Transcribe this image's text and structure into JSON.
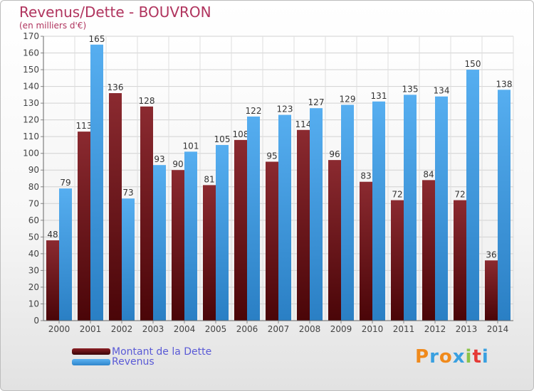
{
  "header": {
    "title": "Revenus/Dette - BOUVRON",
    "subtitle": "(en milliers d'€)"
  },
  "logo": {
    "letters": [
      "P",
      "r",
      "o",
      "x",
      "i",
      "t",
      "i"
    ],
    "colors": [
      "#f08a1c",
      "#3aa0e0",
      "#f08a1c",
      "#3aa0e0",
      "#8bc34a",
      "#e53935",
      "#3aa0e0"
    ]
  },
  "chart_data": {
    "type": "bar",
    "title": "Revenus/Dette - BOUVRON",
    "subtitle": "(en milliers d'€)",
    "categories": [
      "2000",
      "2001",
      "2002",
      "2003",
      "2004",
      "2005",
      "2006",
      "2007",
      "2008",
      "2009",
      "2010",
      "2011",
      "2012",
      "2013",
      "2014"
    ],
    "series": [
      {
        "name": "Montant de la Dette",
        "color": "#8b1e24",
        "values": [
          48,
          113,
          136,
          128,
          90,
          81,
          108,
          95,
          114,
          96,
          83,
          72,
          84,
          72,
          36
        ]
      },
      {
        "name": "Revenus",
        "color": "#3d9ae0",
        "values": [
          79,
          165,
          73,
          93,
          101,
          105,
          122,
          123,
          127,
          129,
          131,
          135,
          134,
          150,
          138
        ]
      }
    ],
    "ylim": [
      0,
      170
    ],
    "ytick_step": 10,
    "grid": true,
    "data_labels": true,
    "legend_position": "bottom-left"
  }
}
